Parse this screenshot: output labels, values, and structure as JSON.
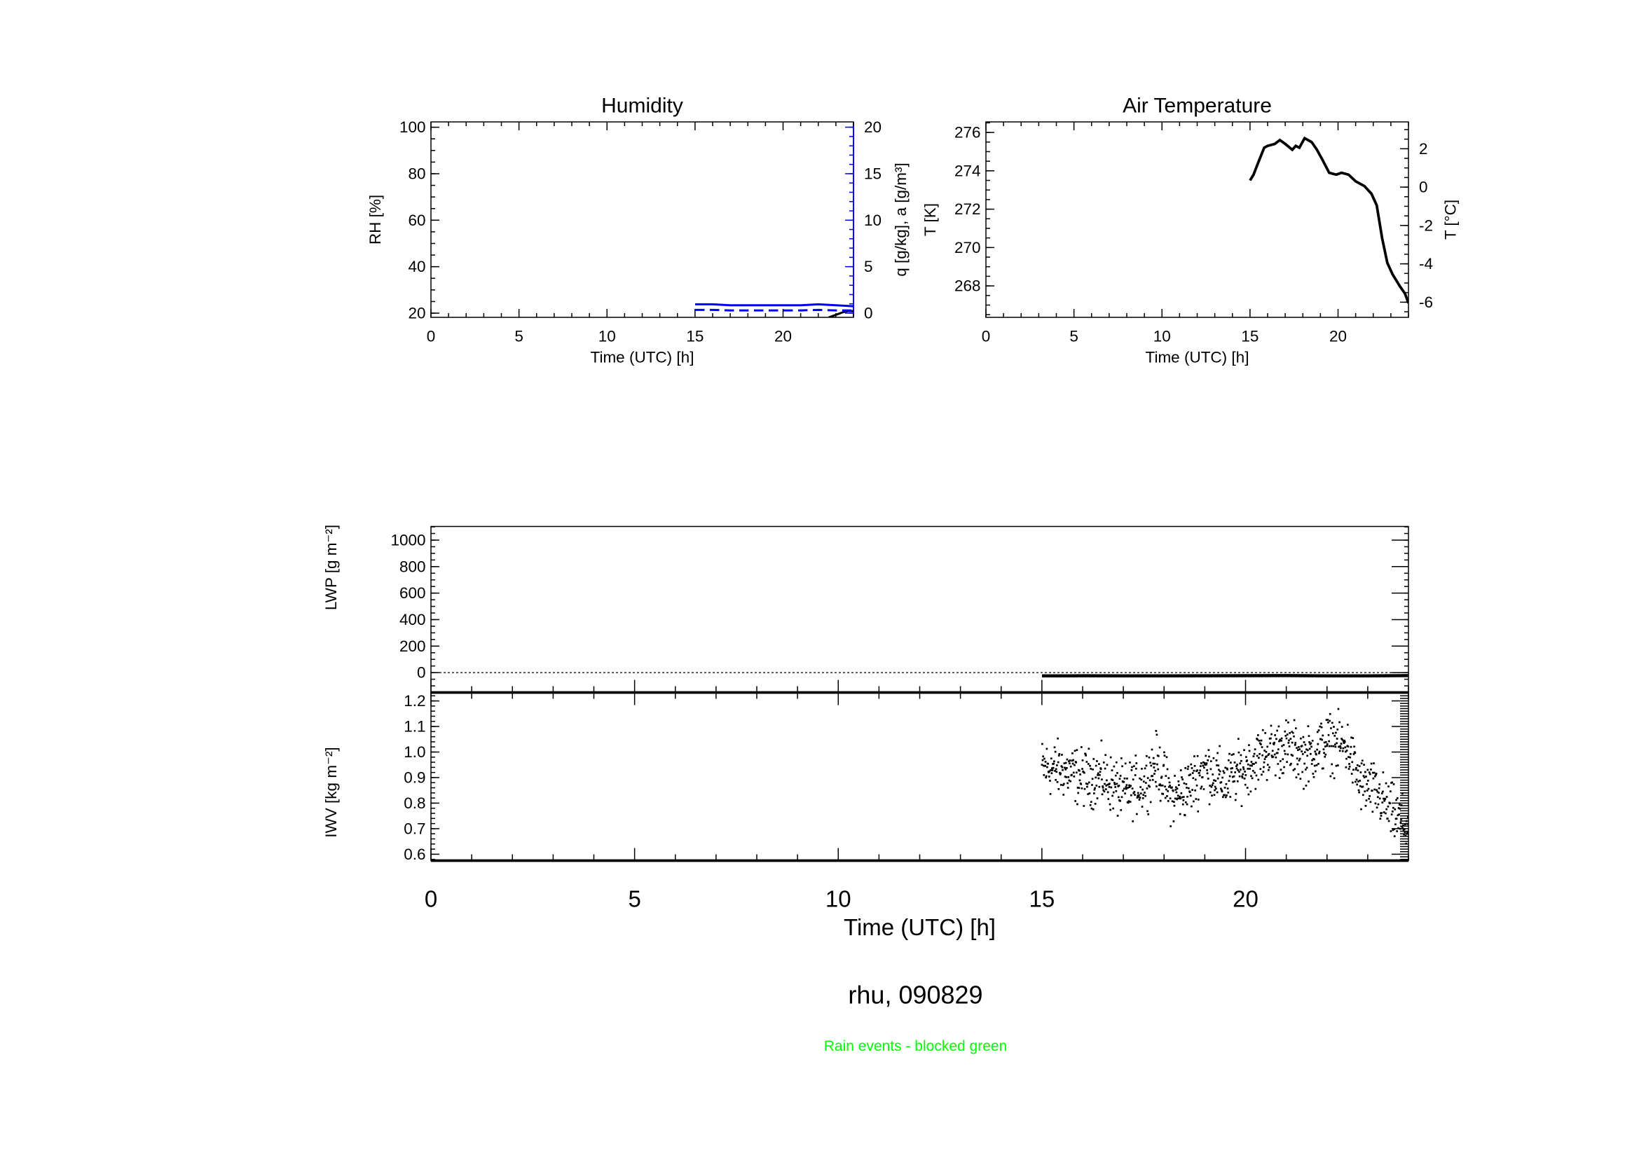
{
  "chart_data": [
    {
      "type": "line",
      "title": "Humidity",
      "xlabel": "Time (UTC) [h]",
      "ylabel": "RH [%]",
      "y2label": "q [g/kg], a [g/m³]",
      "xlim": [
        0,
        24
      ],
      "ylim": [
        18.2,
        102.3
      ],
      "y2lim": [
        -0.45,
        20.57
      ],
      "xticks": [
        0,
        5,
        10,
        15,
        20
      ],
      "yticks": [
        20,
        40,
        60,
        80,
        100
      ],
      "y2ticks": [
        0,
        5,
        10,
        15,
        20
      ],
      "series": [
        {
          "name": "RH",
          "axis": "left",
          "color": "#000000",
          "style": "solid",
          "x": [
            22.6,
            23.0,
            23.4,
            23.7,
            24.0
          ],
          "y": [
            18.2,
            19.3,
            20.4,
            20.9,
            20.8
          ]
        },
        {
          "name": "q",
          "axis": "right",
          "color": "#0000ff",
          "style": "solid",
          "x": [
            15,
            16,
            17,
            18,
            19,
            20,
            21,
            22,
            23,
            24
          ],
          "y": [
            0.95,
            0.95,
            0.85,
            0.85,
            0.85,
            0.85,
            0.85,
            0.95,
            0.85,
            0.75
          ]
        },
        {
          "name": "a",
          "axis": "right",
          "color": "#0000ff",
          "style": "dashed",
          "x": [
            15,
            16,
            17,
            18,
            19,
            20,
            21,
            22,
            23,
            24
          ],
          "y": [
            0.35,
            0.35,
            0.3,
            0.3,
            0.3,
            0.3,
            0.3,
            0.35,
            0.3,
            0.3
          ]
        }
      ]
    },
    {
      "type": "line",
      "title": "Air Temperature",
      "xlabel": "Time (UTC) [h]",
      "ylabel": "T [K]",
      "y2label": "T [°C]",
      "xlim": [
        0,
        24
      ],
      "ylim": [
        266.36,
        276.55
      ],
      "xticks": [
        0,
        5,
        10,
        15,
        20
      ],
      "yticks": [
        268,
        270,
        272,
        274,
        276
      ],
      "y2ticks": [
        2,
        0,
        -2,
        -4,
        -6
      ],
      "series": [
        {
          "name": "T",
          "color": "#000000",
          "x": [
            15.0,
            15.2,
            15.5,
            15.8,
            16.0,
            16.4,
            16.7,
            17.0,
            17.4,
            17.6,
            17.8,
            18.1,
            18.5,
            18.8,
            19.1,
            19.5,
            19.9,
            20.2,
            20.6,
            21.0,
            21.5,
            21.9,
            22.2,
            22.5,
            22.8,
            23.1,
            23.5,
            23.8,
            24.0
          ],
          "y": [
            273.5,
            273.8,
            274.5,
            275.2,
            275.3,
            275.4,
            275.6,
            275.4,
            275.1,
            275.3,
            275.2,
            275.7,
            275.5,
            275.1,
            274.6,
            273.9,
            273.8,
            273.9,
            273.8,
            273.45,
            273.2,
            272.8,
            272.2,
            270.5,
            269.2,
            268.6,
            268.0,
            267.6,
            267.1
          ]
        }
      ]
    },
    {
      "type": "line",
      "title": "",
      "ylabel": "LWP [g m⁻²]",
      "xlim": [
        0,
        24
      ],
      "ylim": [
        -150,
        1103
      ],
      "yticks": [
        0,
        200,
        400,
        600,
        800,
        1000
      ],
      "reference_line": 0,
      "series": [
        {
          "name": "LWP",
          "color": "#000000",
          "x": [
            15,
            16,
            17,
            18,
            19,
            20,
            21,
            22,
            23,
            24
          ],
          "y": [
            -25,
            -24,
            -25,
            -25,
            -24,
            -23,
            -22,
            -25,
            -25,
            -22
          ]
        }
      ]
    },
    {
      "type": "scatter",
      "title": "",
      "ylabel": "IWV [kg m⁻²]",
      "xlabel": "Time (UTC) [h]",
      "xlim": [
        0,
        24
      ],
      "ylim": [
        0.575,
        1.233
      ],
      "xticks": [
        0,
        5,
        10,
        15,
        20
      ],
      "yticks": [
        0.6,
        0.7,
        0.8,
        0.9,
        1.0,
        1.1,
        1.2
      ],
      "ytick_labels": [
        "0.6",
        "0.7",
        "0.8",
        "0.9",
        "1.0",
        "1.1",
        "1.2"
      ],
      "trend": {
        "x": [
          15.0,
          15.5,
          16.0,
          16.5,
          17.0,
          17.5,
          17.8,
          18.2,
          18.6,
          19.0,
          19.5,
          20.0,
          20.5,
          21.0,
          21.5,
          22.0,
          22.5,
          22.8,
          23.2,
          23.6,
          24.0
        ],
        "y": [
          0.94,
          0.93,
          0.9,
          0.9,
          0.84,
          0.88,
          0.96,
          0.82,
          0.86,
          0.94,
          0.88,
          0.94,
          1.0,
          1.02,
          0.98,
          1.04,
          1.02,
          0.88,
          0.84,
          0.76,
          0.7
        ]
      },
      "spread": 0.09,
      "point_count": 900,
      "color": "#000000"
    }
  ],
  "footer": {
    "site_date": "rhu, 090829",
    "note": "Rain events - blocked green",
    "note_color": "#00ff00"
  }
}
